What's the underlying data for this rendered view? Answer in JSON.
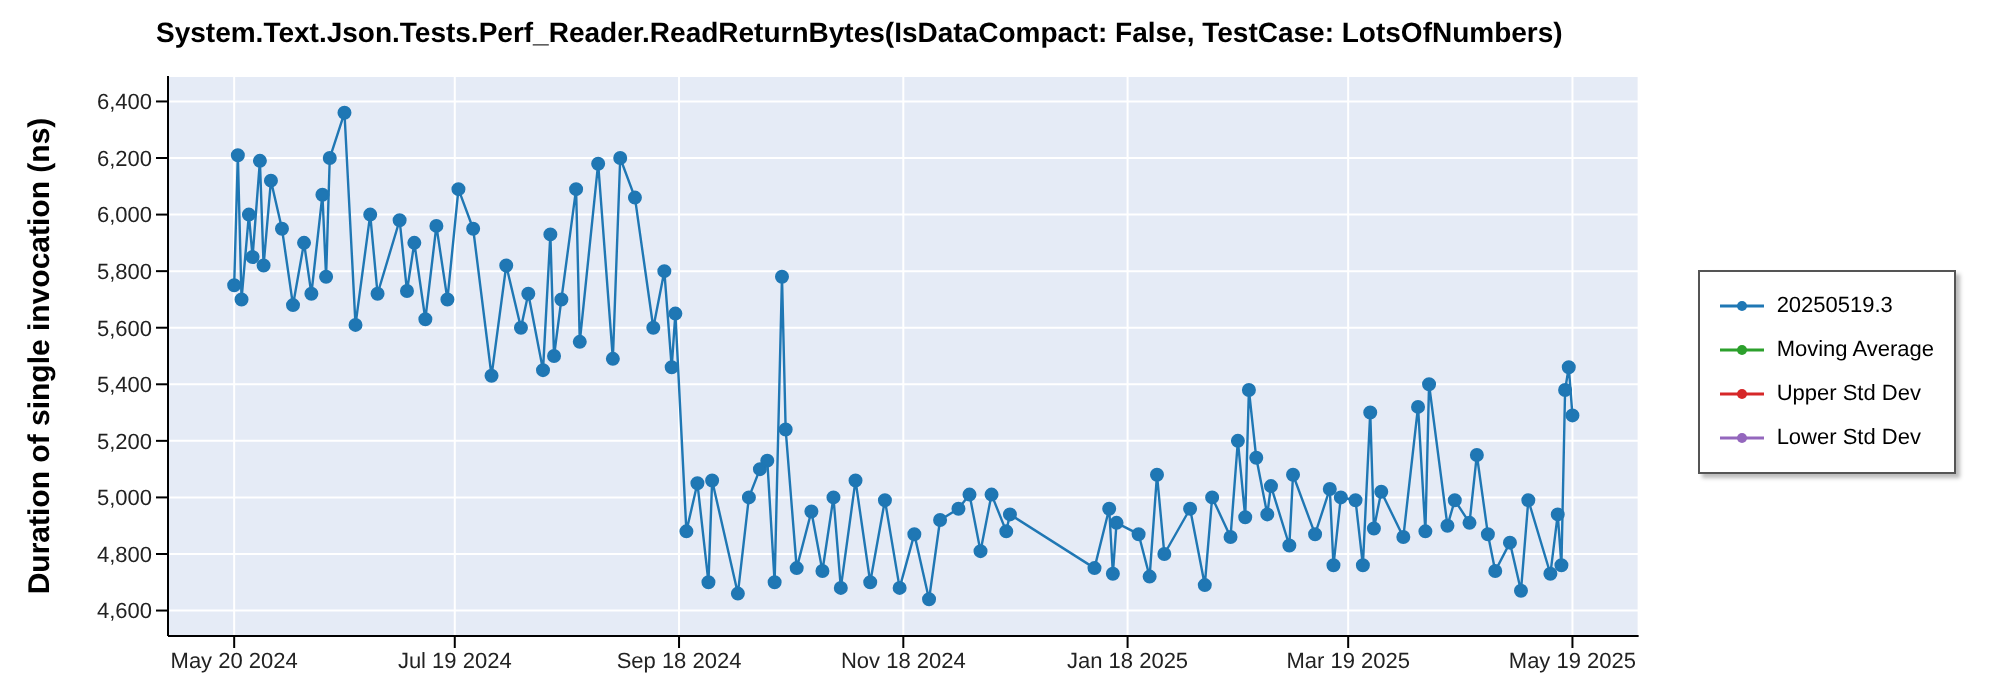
{
  "chart_data": {
    "type": "line",
    "title": "System.Text.Json.Tests.Perf_Reader.ReadReturnBytes(IsDataCompact: False, TestCase: LotsOfNumbers)",
    "ylabel": "Duration of single invocation (ns)",
    "xlim": [
      "2024-05-02",
      "2025-06-06"
    ],
    "xticks": [
      {
        "value": "2024-05-20",
        "label": "May 20 2024"
      },
      {
        "value": "2024-07-19",
        "label": "Jul 19 2024"
      },
      {
        "value": "2024-09-18",
        "label": "Sep 18 2024"
      },
      {
        "value": "2024-11-18",
        "label": "Nov 18 2024"
      },
      {
        "value": "2025-01-18",
        "label": "Jan 18 2025"
      },
      {
        "value": "2025-03-19",
        "label": "Mar 19 2025"
      },
      {
        "value": "2025-05-19",
        "label": "May 19 2025"
      }
    ],
    "ylim": [
      4510,
      6490
    ],
    "yticks": [
      {
        "value": 4600,
        "label": "4,600"
      },
      {
        "value": 4800,
        "label": "4,800"
      },
      {
        "value": 5000,
        "label": "5,000"
      },
      {
        "value": 5200,
        "label": "5,200"
      },
      {
        "value": 5400,
        "label": "5,400"
      },
      {
        "value": 5600,
        "label": "5,600"
      },
      {
        "value": 5800,
        "label": "5,800"
      },
      {
        "value": 6000,
        "label": "6,000"
      },
      {
        "value": 6200,
        "label": "6,200"
      },
      {
        "value": 6400,
        "label": "6,400"
      }
    ],
    "grid": true,
    "legend": "right",
    "marker": "circle",
    "line_style": "solid",
    "series": [
      {
        "name": "20250519.3",
        "color": "#1f77b4",
        "x": [
          "2024-05-20",
          "2024-05-21",
          "2024-05-22",
          "2024-05-24",
          "2024-05-25",
          "2024-05-27",
          "2024-05-28",
          "2024-05-30",
          "2024-06-02",
          "2024-06-05",
          "2024-06-08",
          "2024-06-10",
          "2024-06-13",
          "2024-06-14",
          "2024-06-15",
          "2024-06-19",
          "2024-06-22",
          "2024-06-26",
          "2024-06-28",
          "2024-07-04",
          "2024-07-06",
          "2024-07-08",
          "2024-07-11",
          "2024-07-14",
          "2024-07-17",
          "2024-07-20",
          "2024-07-24",
          "2024-07-29",
          "2024-08-02",
          "2024-08-06",
          "2024-08-08",
          "2024-08-12",
          "2024-08-14",
          "2024-08-15",
          "2024-08-17",
          "2024-08-21",
          "2024-08-22",
          "2024-08-27",
          "2024-08-31",
          "2024-09-02",
          "2024-09-06",
          "2024-09-11",
          "2024-09-14",
          "2024-09-16",
          "2024-09-17",
          "2024-09-20",
          "2024-09-23",
          "2024-09-26",
          "2024-09-27",
          "2024-10-04",
          "2024-10-07",
          "2024-10-10",
          "2024-10-12",
          "2024-10-14",
          "2024-10-16",
          "2024-10-17",
          "2024-10-20",
          "2024-10-24",
          "2024-10-27",
          "2024-10-30",
          "2024-11-01",
          "2024-11-05",
          "2024-11-09",
          "2024-11-13",
          "2024-11-17",
          "2024-11-21",
          "2024-11-25",
          "2024-11-28",
          "2024-12-03",
          "2024-12-06",
          "2024-12-09",
          "2024-12-12",
          "2024-12-16",
          "2024-12-17",
          "2025-01-09",
          "2025-01-13",
          "2025-01-14",
          "2025-01-15",
          "2025-01-21",
          "2025-01-24",
          "2025-01-26",
          "2025-01-28",
          "2025-02-04",
          "2025-02-08",
          "2025-02-10",
          "2025-02-15",
          "2025-02-17",
          "2025-02-19",
          "2025-02-20",
          "2025-02-22",
          "2025-02-25",
          "2025-02-26",
          "2025-03-03",
          "2025-03-04",
          "2025-03-10",
          "2025-03-14",
          "2025-03-15",
          "2025-03-17",
          "2025-03-21",
          "2025-03-23",
          "2025-03-25",
          "2025-03-26",
          "2025-03-28",
          "2025-04-03",
          "2025-04-07",
          "2025-04-09",
          "2025-04-10",
          "2025-04-15",
          "2025-04-17",
          "2025-04-21",
          "2025-04-23",
          "2025-04-26",
          "2025-04-28",
          "2025-05-02",
          "2025-05-05",
          "2025-05-07",
          "2025-05-13",
          "2025-05-15",
          "2025-05-16",
          "2025-05-17",
          "2025-05-18",
          "2025-05-19"
        ],
        "values": [
          5750,
          6210,
          5700,
          6000,
          5850,
          6190,
          5820,
          6120,
          5950,
          5680,
          5900,
          5720,
          6070,
          5780,
          6200,
          6360,
          5610,
          6000,
          5720,
          5980,
          5730,
          5900,
          5630,
          5960,
          5700,
          6090,
          5950,
          5430,
          5820,
          5600,
          5720,
          5450,
          5930,
          5500,
          5700,
          6090,
          5550,
          6180,
          5490,
          6200,
          6060,
          5600,
          5800,
          5460,
          5650,
          4880,
          5050,
          4700,
          5060,
          4660,
          5000,
          5100,
          5130,
          4700,
          5780,
          5240,
          4750,
          4950,
          4740,
          5000,
          4680,
          5060,
          4700,
          4990,
          4680,
          4870,
          4640,
          4920,
          4960,
          5010,
          4810,
          5010,
          4880,
          4940,
          4750,
          4960,
          4730,
          4910,
          4870,
          4720,
          5080,
          4800,
          4960,
          4690,
          5000,
          4860,
          5200,
          4930,
          5380,
          5140,
          4940,
          5040,
          4830,
          5080,
          4870,
          5030,
          4760,
          5000,
          4990,
          4760,
          5300,
          4890,
          5020,
          4860,
          5320,
          4880,
          5400,
          4900,
          4990,
          4910,
          5150,
          4870,
          4740,
          4840,
          4670,
          4990,
          4730,
          4940,
          4760,
          5380,
          5460,
          5290
        ]
      },
      {
        "name": "Moving Average",
        "color": "#2ca02c"
      },
      {
        "name": "Upper Std Dev",
        "color": "#d62728"
      },
      {
        "name": "Lower Std Dev",
        "color": "#9467bd"
      }
    ]
  }
}
